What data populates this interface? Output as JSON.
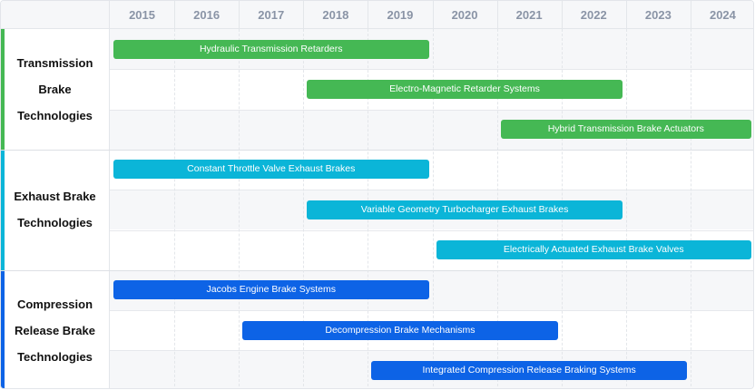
{
  "chart_data": {
    "type": "gantt",
    "years": [
      "2015",
      "2016",
      "2017",
      "2018",
      "2019",
      "2020",
      "2021",
      "2022",
      "2023",
      "2024"
    ],
    "groups": [
      {
        "label": "Transmission Brake Technologies",
        "label_lines": [
          "Transmission",
          "Brake",
          "Technologies"
        ],
        "color": "#45b854",
        "tasks": [
          {
            "name": "Hydraulic Transmission Retarders",
            "start": 2015,
            "end": 2019
          },
          {
            "name": "Electro-Magnetic Retarder Systems",
            "start": 2018,
            "end": 2022
          },
          {
            "name": "Hybrid Transmission Brake Actuators",
            "start": 2021,
            "end": 2024
          }
        ]
      },
      {
        "label": "Exhaust Brake Technologies",
        "label_lines": [
          "Exhaust Brake",
          "Technologies"
        ],
        "color": "#0bb5d8",
        "tasks": [
          {
            "name": "Constant Throttle Valve Exhaust Brakes",
            "start": 2015,
            "end": 2019
          },
          {
            "name": "Variable Geometry Turbocharger Exhaust Brakes",
            "start": 2018,
            "end": 2022
          },
          {
            "name": "Electrically Actuated Exhaust Brake Valves",
            "start": 2020,
            "end": 2024
          }
        ]
      },
      {
        "label": "Compression Release Brake Technologies",
        "label_lines": [
          "Compression",
          "Release Brake",
          "Technologies"
        ],
        "color": "#0d63e6",
        "tasks": [
          {
            "name": "Jacobs Engine Brake Systems",
            "start": 2015,
            "end": 2019
          },
          {
            "name": "Decompression Brake Mechanisms",
            "start": 2017,
            "end": 2021
          },
          {
            "name": "Integrated Compression Release Braking Systems",
            "start": 2019,
            "end": 2023
          }
        ]
      }
    ],
    "grid": true
  }
}
